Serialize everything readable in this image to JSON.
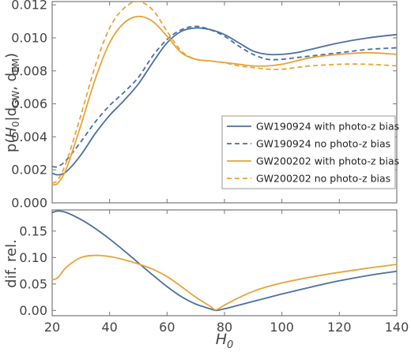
{
  "chart_data": [
    {
      "type": "line",
      "ylabel_parts": [
        "p(",
        "H",
        "0",
        "|d",
        "GW",
        ", d",
        "EM",
        ")"
      ],
      "xlim": [
        20,
        140
      ],
      "ylim": [
        0,
        0.0122
      ],
      "yticks": [
        "0.000",
        "0.002",
        "0.004",
        "0.006",
        "0.008",
        "0.010",
        "0.012"
      ],
      "legend": "center-right",
      "series": [
        {
          "name": "GW190924 with photo-z bias",
          "color": "#4a6fa5",
          "dash": "solid",
          "x": [
            20,
            22,
            25,
            30,
            35,
            40,
            45,
            50,
            55,
            60,
            65,
            70,
            75,
            80,
            85,
            90,
            95,
            100,
            105,
            110,
            120,
            130,
            140
          ],
          "y": [
            0.0018,
            0.0017,
            0.0019,
            0.0029,
            0.0042,
            0.0053,
            0.0062,
            0.0072,
            0.0085,
            0.0097,
            0.0104,
            0.0106,
            0.0105,
            0.0102,
            0.0097,
            0.0092,
            0.009,
            0.009,
            0.0091,
            0.0093,
            0.0097,
            0.01,
            0.0102
          ]
        },
        {
          "name": "GW190924 no photo-z bias",
          "color": "#4a6fa5",
          "dash": "dashed",
          "x": [
            20,
            22,
            25,
            30,
            35,
            40,
            45,
            50,
            55,
            60,
            65,
            70,
            75,
            80,
            85,
            90,
            95,
            100,
            105,
            110,
            120,
            130,
            140
          ],
          "y": [
            0.0022,
            0.0022,
            0.0026,
            0.0037,
            0.0049,
            0.0059,
            0.0067,
            0.0076,
            0.0089,
            0.0099,
            0.0105,
            0.0107,
            0.0105,
            0.0101,
            0.0095,
            0.009,
            0.0087,
            0.0087,
            0.0088,
            0.0089,
            0.0091,
            0.0093,
            0.0094
          ]
        },
        {
          "name": "GW200202 with photo-z bias",
          "color": "#e8a33a",
          "dash": "solid",
          "x": [
            20,
            22,
            25,
            30,
            35,
            40,
            45,
            50,
            55,
            60,
            65,
            70,
            75,
            80,
            85,
            90,
            95,
            100,
            105,
            110,
            120,
            130,
            140
          ],
          "y": [
            0.0011,
            0.0012,
            0.0021,
            0.0047,
            0.0075,
            0.0097,
            0.0109,
            0.0113,
            0.011,
            0.0101,
            0.0091,
            0.0087,
            0.0086,
            0.0085,
            0.0084,
            0.0083,
            0.0083,
            0.0084,
            0.0086,
            0.0088,
            0.009,
            0.0091,
            0.009
          ]
        },
        {
          "name": "GW200202 no photo-z bias",
          "color": "#e8a33a",
          "dash": "dashed",
          "x": [
            20,
            22,
            25,
            30,
            35,
            40,
            45,
            50,
            55,
            60,
            65,
            70,
            75,
            80,
            85,
            90,
            95,
            100,
            105,
            110,
            120,
            130,
            140
          ],
          "y": [
            0.0012,
            0.0014,
            0.0025,
            0.0053,
            0.0083,
            0.0106,
            0.0118,
            0.0122,
            0.0117,
            0.0104,
            0.0092,
            0.0087,
            0.0086,
            0.0085,
            0.0083,
            0.0082,
            0.0081,
            0.0081,
            0.0082,
            0.0083,
            0.0084,
            0.0084,
            0.0083
          ]
        }
      ]
    },
    {
      "type": "line",
      "ylabel": "dif. rel.",
      "xlabel_parts": [
        "H",
        "0"
      ],
      "xlim": [
        20,
        140
      ],
      "ylim": [
        -0.01,
        0.19
      ],
      "xticks": [
        "20",
        "40",
        "60",
        "80",
        "100",
        "120",
        "140"
      ],
      "yticks": [
        "0.00",
        "0.05",
        "0.10",
        "0.15"
      ],
      "series": [
        {
          "color": "#4a6fa5",
          "dash": "solid",
          "x": [
            20,
            22,
            25,
            30,
            35,
            40,
            45,
            50,
            55,
            60,
            65,
            70,
            75,
            77,
            80,
            85,
            90,
            95,
            100,
            110,
            120,
            130,
            140
          ],
          "y": [
            0.185,
            0.188,
            0.185,
            0.172,
            0.155,
            0.135,
            0.113,
            0.09,
            0.067,
            0.045,
            0.026,
            0.012,
            0.003,
            0.0,
            0.003,
            0.01,
            0.017,
            0.024,
            0.031,
            0.044,
            0.056,
            0.066,
            0.074
          ]
        },
        {
          "color": "#e8a33a",
          "dash": "solid",
          "x": [
            20,
            22,
            25,
            30,
            35,
            40,
            45,
            50,
            55,
            60,
            65,
            70,
            75,
            77,
            80,
            85,
            90,
            95,
            100,
            110,
            120,
            130,
            140
          ],
          "y": [
            0.058,
            0.062,
            0.082,
            0.1,
            0.104,
            0.102,
            0.096,
            0.088,
            0.078,
            0.064,
            0.045,
            0.025,
            0.008,
            0.001,
            0.01,
            0.024,
            0.036,
            0.045,
            0.052,
            0.063,
            0.072,
            0.08,
            0.087
          ]
        }
      ]
    }
  ]
}
